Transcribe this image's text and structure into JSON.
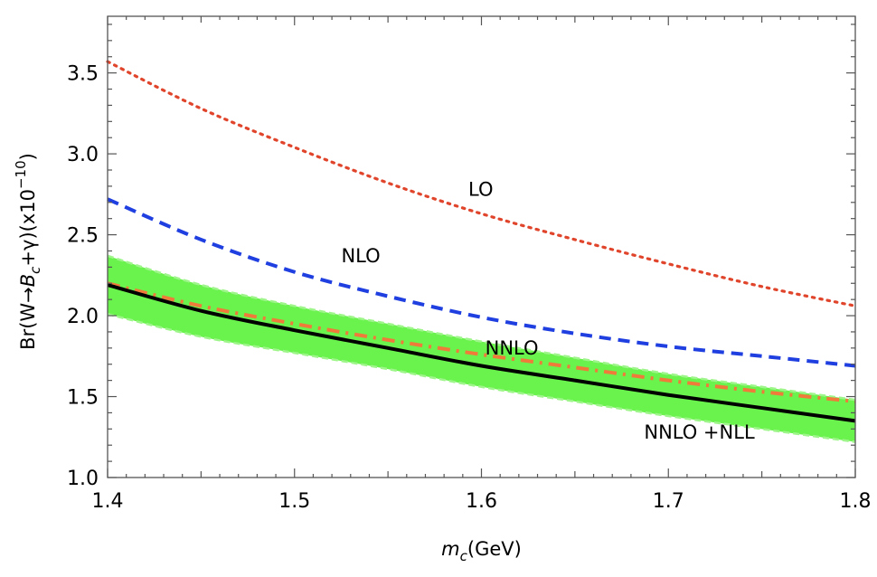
{
  "chart_data": {
    "type": "line",
    "xlim": [
      1.4,
      1.8
    ],
    "ylim": [
      1.0,
      3.85
    ],
    "x_ticks": [
      "1.4",
      "1.5",
      "1.6",
      "1.7",
      "1.8"
    ],
    "y_ticks": [
      "1.0",
      "1.5",
      "2.0",
      "2.5",
      "3.0",
      "3.5"
    ],
    "x_tick_values": [
      1.4,
      1.5,
      1.6,
      1.7,
      1.8
    ],
    "y_tick_values": [
      1.0,
      1.5,
      2.0,
      2.5,
      3.0,
      3.5
    ],
    "xlabel": {
      "var": "m",
      "sub": "c",
      "rest": "(GeV)"
    },
    "ylabel": {
      "pre": "Br(W→",
      "B": "B",
      "sub": "c",
      "mid": "+γ)(x10",
      "sup": "−10",
      "post": ")"
    },
    "x": [
      1.4,
      1.45,
      1.5,
      1.55,
      1.6,
      1.65,
      1.7,
      1.75,
      1.8
    ],
    "series": [
      {
        "label": "LO",
        "style": "dotted",
        "color": "#e0452c",
        "values": [
          3.57,
          3.28,
          3.04,
          2.82,
          2.63,
          2.47,
          2.32,
          2.18,
          2.06
        ]
      },
      {
        "label": "NLO",
        "style": "dashed",
        "color": "#1f3fe0",
        "values": [
          2.72,
          2.47,
          2.27,
          2.12,
          1.99,
          1.89,
          1.81,
          1.75,
          1.69
        ]
      },
      {
        "label": "NNLO",
        "style": "dashdot",
        "color": "#f07a3a",
        "values": [
          2.2,
          2.06,
          1.95,
          1.85,
          1.76,
          1.68,
          1.6,
          1.53,
          1.47
        ]
      },
      {
        "label": "NNLO +NLL",
        "style": "solid",
        "color": "#000000",
        "values": [
          2.19,
          2.03,
          1.91,
          1.8,
          1.69,
          1.6,
          1.51,
          1.43,
          1.35
        ]
      }
    ],
    "band": {
      "color": "#6af24d",
      "edge_color": "#9ef58a",
      "upper": [
        2.37,
        2.19,
        2.06,
        1.95,
        1.84,
        1.74,
        1.64,
        1.56,
        1.48
      ],
      "lower": [
        2.01,
        1.87,
        1.77,
        1.67,
        1.56,
        1.47,
        1.38,
        1.3,
        1.22
      ]
    },
    "annotations": [
      {
        "text": "LO",
        "x": 1.593,
        "y": 2.78
      },
      {
        "text": "NLO",
        "x": 1.525,
        "y": 2.37
      },
      {
        "text": "NNLO",
        "x": 1.602,
        "y": 1.8
      },
      {
        "text": "NNLO +NLL",
        "x": 1.687,
        "y": 1.28
      }
    ],
    "grid": false
  }
}
